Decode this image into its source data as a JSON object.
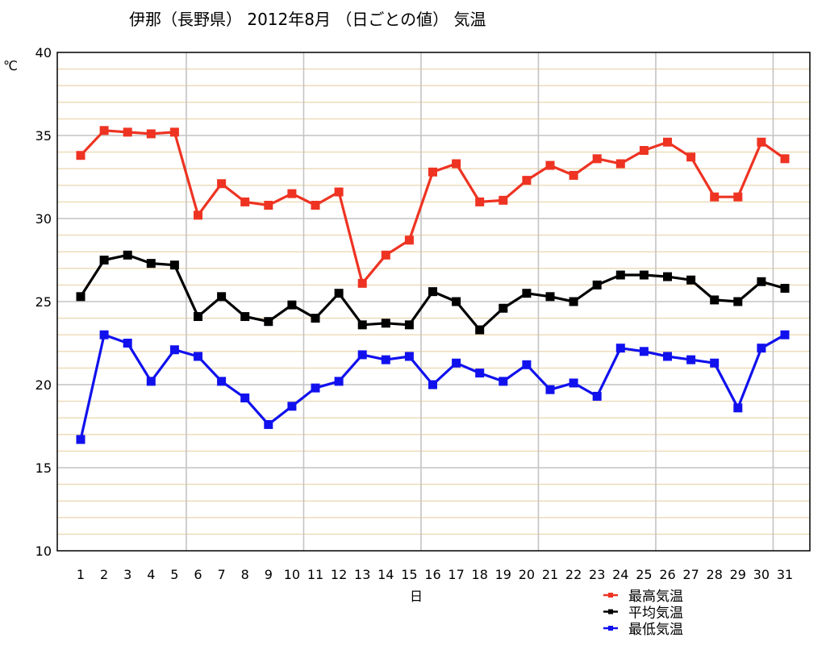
{
  "chart_data": {
    "type": "line",
    "title": "伊那（長野県） 2012年8月 （日ごとの値） 気温",
    "xlabel": "日",
    "ylabel": "℃",
    "ylim": [
      10,
      40
    ],
    "yticks": [
      10,
      15,
      20,
      25,
      30,
      35,
      40
    ],
    "categories": [
      "1",
      "2",
      "3",
      "4",
      "5",
      "6",
      "7",
      "8",
      "9",
      "10",
      "11",
      "12",
      "13",
      "14",
      "15",
      "16",
      "17",
      "18",
      "19",
      "20",
      "21",
      "22",
      "23",
      "24",
      "25",
      "26",
      "27",
      "28",
      "29",
      "30",
      "31"
    ],
    "grid": true,
    "legend_position": "bottom-right",
    "series": [
      {
        "name": "最高気温",
        "color": "#ee3322",
        "values": [
          33.8,
          35.3,
          35.2,
          35.1,
          35.2,
          30.2,
          32.1,
          31.0,
          30.8,
          31.5,
          30.8,
          31.6,
          26.1,
          27.8,
          28.7,
          32.8,
          33.3,
          31.0,
          31.1,
          32.3,
          33.2,
          32.6,
          33.6,
          33.3,
          34.1,
          34.6,
          33.7,
          31.3,
          31.3,
          34.6,
          33.6
        ]
      },
      {
        "name": "平均気温",
        "color": "#000000",
        "values": [
          25.3,
          27.5,
          27.8,
          27.3,
          27.2,
          24.1,
          25.3,
          24.1,
          23.8,
          24.8,
          24.0,
          25.5,
          23.6,
          23.7,
          23.6,
          25.6,
          25.0,
          23.3,
          24.6,
          25.5,
          25.3,
          25.0,
          26.0,
          26.6,
          26.6,
          26.5,
          26.3,
          25.1,
          25.0,
          26.2,
          25.8
        ]
      },
      {
        "name": "最低気温",
        "color": "#1111ee",
        "values": [
          16.7,
          23.0,
          22.5,
          20.2,
          22.1,
          21.7,
          20.2,
          19.2,
          17.6,
          18.7,
          19.8,
          20.2,
          21.8,
          21.5,
          21.7,
          20.0,
          21.3,
          20.7,
          20.2,
          21.2,
          19.7,
          20.1,
          19.3,
          22.2,
          22.0,
          21.7,
          21.5,
          21.3,
          18.6,
          22.2,
          23.0
        ]
      }
    ]
  }
}
